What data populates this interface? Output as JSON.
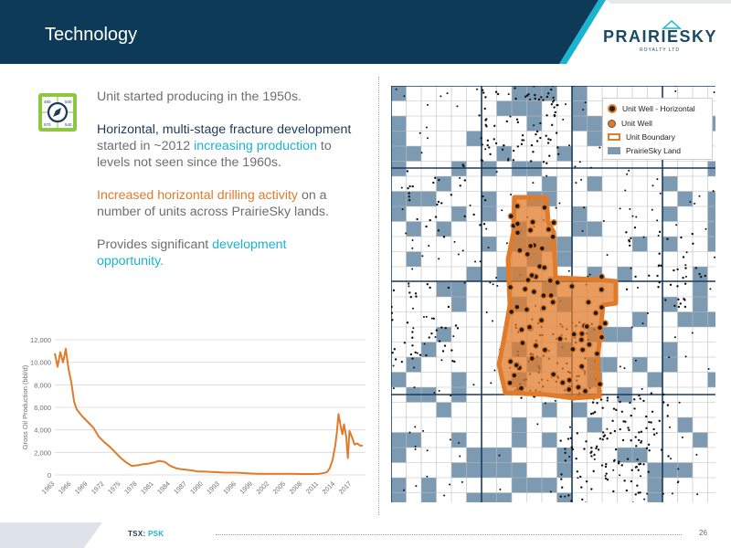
{
  "header": {
    "title": "Technology",
    "colors": {
      "band": "#0d3a57",
      "accent": "#1ab3d0"
    }
  },
  "logo": {
    "name": "PRAIRIESKY",
    "subtitle": "ROYALTY LTD"
  },
  "icon": "compass-circuit-icon",
  "bullets": {
    "b1": "Unit started producing in the 1950s.",
    "b2_navy": "Horizontal, multi-stage fracture development",
    "b2_grey1": " started in ~2012 ",
    "b2_teal": "increasing production",
    "b2_grey2": " to levels not seen since the 1960s.",
    "b3_orange": "Increased horizontal drilling activity",
    "b3_grey": " on a number of units across PrairieSky lands.",
    "b4_grey": "Provides significant ",
    "b4_teal": "development opportunity."
  },
  "chart_data": {
    "type": "line",
    "title": "",
    "xlabel": "",
    "ylabel": "Gross Oil Production (bbl/d)",
    "ylim": [
      0,
      12000
    ],
    "y_ticks": [
      "0",
      "2,000",
      "4,000",
      "6,000",
      "8,000",
      "10,000",
      "12,000"
    ],
    "x_ticks": [
      "1963",
      "1966",
      "1969",
      "1972",
      "1975",
      "1978",
      "1981",
      "1984",
      "1987",
      "1990",
      "1993",
      "1996",
      "1999",
      "2002",
      "2005",
      "2008",
      "2011",
      "2014",
      "2017"
    ],
    "xlim": [
      1963,
      2019.5
    ],
    "grid": true,
    "color": "#e07b2b",
    "series": [
      {
        "x": [
          1963,
          1963.5,
          1964,
          1964.5,
          1965,
          1965.5,
          1966,
          1966.5,
          1967,
          1968,
          1969,
          1970,
          1971,
          1972,
          1973,
          1974,
          1975,
          1976,
          1977,
          1978,
          1979,
          1980,
          1981,
          1982,
          1983,
          1984,
          1985,
          1986,
          1987,
          1988,
          1989,
          1990,
          1992,
          1994,
          1996,
          1998,
          2000,
          2002,
          2004,
          2006,
          2008,
          2010,
          2011,
          2012,
          2012.5,
          2013,
          2013.5,
          2014,
          2014.3,
          2014.6,
          2015,
          2015.3,
          2015.6,
          2016,
          2016.3,
          2016.6,
          2017,
          2017.5,
          2018,
          2018.5,
          2019
        ],
        "y": [
          10800,
          9600,
          10900,
          10000,
          11200,
          9400,
          8200,
          6500,
          5800,
          5200,
          4700,
          4200,
          3400,
          2900,
          2500,
          2000,
          1500,
          1100,
          800,
          850,
          950,
          1000,
          1100,
          1250,
          1150,
          800,
          600,
          500,
          450,
          400,
          300,
          300,
          250,
          200,
          200,
          150,
          100,
          100,
          100,
          100,
          80,
          80,
          100,
          180,
          250,
          600,
          1300,
          2600,
          3800,
          5400,
          4300,
          3600,
          4500,
          3400,
          1500,
          3900,
          3400,
          2700,
          2800,
          2600,
          2600
        ]
      }
    ]
  },
  "map": {
    "legend": [
      {
        "symbol": "unit-well-horizontal-symbol",
        "label": "Unit Well - Horizontal"
      },
      {
        "symbol": "unit-well-symbol",
        "label": "Unit Well"
      },
      {
        "symbol": "unit-boundary-symbol",
        "label": "Unit Boundary"
      },
      {
        "symbol": "prairiesky-land-symbol",
        "label": "PrairieSky Land"
      }
    ],
    "colors": {
      "land": "#7d9ab3",
      "boundary": "#e07b2b",
      "wells": "#111111",
      "grid": "#bdbdbd",
      "major_grid": "#1b3b5c"
    }
  },
  "footer": {
    "ticker_prefix": "TSX:",
    "ticker": "PSK",
    "page": "26"
  }
}
